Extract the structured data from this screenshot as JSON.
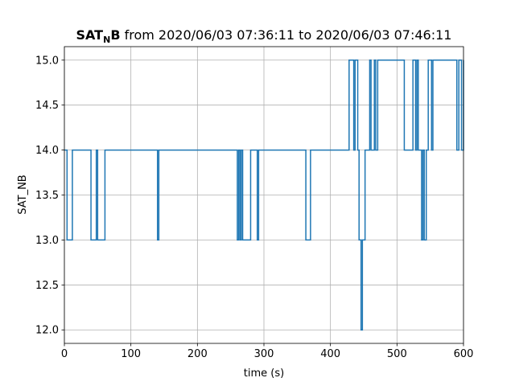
{
  "chart_data": {
    "type": "line",
    "drawstyle": "steps-post",
    "title": {
      "bold_main": "SAT",
      "bold_subscript": "N",
      "bold_suffix": "B",
      "rest": " from 2020/06/03 07:36:11 to 2020/06/03 07:46:11"
    },
    "xlabel": "time (s)",
    "ylabel": "SAT_NB",
    "xlim": [
      0,
      600
    ],
    "ylim": [
      11.85,
      15.15
    ],
    "xticks": [
      0,
      100,
      200,
      300,
      400,
      500,
      600
    ],
    "xtick_labels": [
      "0",
      "100",
      "200",
      "300",
      "400",
      "500",
      "600"
    ],
    "yticks": [
      12.0,
      12.5,
      13.0,
      13.5,
      14.0,
      14.5,
      15.0
    ],
    "ytick_labels": [
      "12.0",
      "12.5",
      "13.0",
      "13.5",
      "14.0",
      "14.5",
      "15.0"
    ],
    "grid": true,
    "line_color": "#1f77b4",
    "series": [
      {
        "x": [
          0,
          4,
          12,
          40,
          48,
          50,
          61,
          140,
          142,
          260,
          262,
          264,
          266,
          268,
          280,
          290,
          292,
          363,
          370,
          428,
          435,
          437,
          441,
          443,
          446,
          448,
          452,
          459,
          461,
          466,
          468,
          471,
          474,
          511,
          524,
          528,
          530,
          532,
          537,
          539,
          541,
          544,
          547,
          552,
          554,
          590,
          593,
          597,
          600
        ],
        "y": [
          14,
          13,
          14,
          13,
          14,
          13,
          14,
          13,
          14,
          13,
          14,
          13,
          14,
          13,
          14,
          13,
          14,
          13,
          14,
          15,
          14,
          15,
          14,
          13,
          12,
          13,
          14,
          15,
          14,
          15,
          14,
          15,
          15,
          14,
          15,
          14,
          15,
          14,
          13,
          14,
          13,
          14,
          15,
          14,
          15,
          14,
          15,
          14,
          15
        ]
      }
    ]
  }
}
